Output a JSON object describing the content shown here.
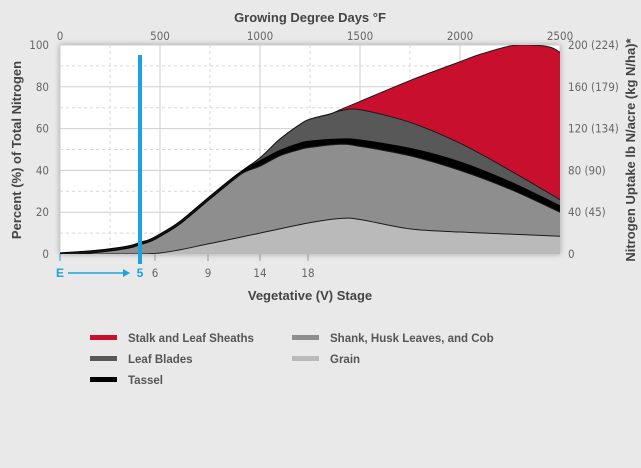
{
  "chart_data": {
    "type": "area",
    "top_axis": {
      "title": "Growing Degree Days °F",
      "range": [
        0,
        2500
      ],
      "ticks": [
        "0",
        "500",
        "1000",
        "1500",
        "2000",
        "2500"
      ]
    },
    "bottom_axis": {
      "title": "Vegetative (V) Stage",
      "ticks": [
        {
          "label": "E",
          "gdd": 0,
          "color": "#1aa3dd"
        },
        {
          "label": "5",
          "gdd": 400,
          "color": "#1aa3dd"
        },
        {
          "label": "6",
          "gdd": 475,
          "color": "#666666"
        },
        {
          "label": "9",
          "gdd": 740,
          "color": "#666666"
        },
        {
          "label": "14",
          "gdd": 1000,
          "color": "#666666"
        },
        {
          "label": "18",
          "gdd": 1240,
          "color": "#666666"
        }
      ]
    },
    "left_axis": {
      "title": "Percent (%) of Total Nitrogen",
      "range": [
        0,
        100
      ],
      "ticks": [
        "0",
        "20",
        "40",
        "60",
        "80",
        "100"
      ]
    },
    "right_axis": {
      "title": "Nitrogen Uptake lb N/acre (kg N/ha)*",
      "ticks": [
        "0",
        "40 (45)",
        "80 (90)",
        "120 (134)",
        "160 (179)",
        "200 (224)"
      ]
    },
    "marker": {
      "gdd": 400,
      "color": "#1aa3dd"
    },
    "grid": true,
    "legend_position": "bottom",
    "series": [
      {
        "name": "Grain",
        "color": "#bababa",
        "x": [
          0,
          250,
          500,
          750,
          1000,
          1250,
          1400,
          1500,
          1750,
          2000,
          2250,
          2500
        ],
        "values": [
          0,
          0,
          0.5,
          5,
          10,
          15,
          17,
          16.5,
          12,
          10.5,
          9.5,
          8.5
        ]
      },
      {
        "name": "Shank, Husk Leaves, and Cob",
        "color": "#8e8e8e",
        "x": [
          0,
          150,
          250,
          350,
          400,
          450,
          500,
          600,
          750,
          900,
          1000,
          1100,
          1200,
          1250,
          1400,
          1500,
          1750,
          2000,
          2250,
          2500
        ],
        "values": [
          0,
          1,
          2,
          3.5,
          5,
          6.5,
          9,
          15,
          27,
          38,
          42,
          47,
          50,
          51,
          52.5,
          51.5,
          47,
          40,
          31,
          20
        ]
      },
      {
        "name": "Tassel",
        "color": "#000000",
        "x": [
          0,
          150,
          250,
          350,
          400,
          450,
          500,
          600,
          750,
          900,
          1000,
          1100,
          1200,
          1250,
          1400,
          1500,
          1750,
          2000,
          2250,
          2500
        ],
        "values": [
          0,
          1,
          2,
          3.5,
          5,
          6.5,
          9,
          15,
          27,
          38.5,
          44,
          49,
          52.5,
          53.5,
          54.5,
          54,
          50,
          43.5,
          34,
          22.5
        ]
      },
      {
        "name": "Leaf Blades",
        "color": "#585858",
        "x": [
          0,
          150,
          250,
          350,
          400,
          450,
          500,
          600,
          750,
          900,
          1000,
          1100,
          1200,
          1250,
          1350,
          1400,
          1500,
          1750,
          2000,
          2250,
          2500
        ],
        "values": [
          0,
          1,
          2,
          3.5,
          5,
          6.5,
          9,
          15,
          27,
          39,
          46,
          55,
          62,
          64.5,
          67,
          68.5,
          69,
          63,
          53,
          40,
          26
        ]
      },
      {
        "name": "Stalk and Leaf Sheaths",
        "color": "#c8102e",
        "x": [
          0,
          150,
          250,
          350,
          400,
          450,
          500,
          600,
          750,
          900,
          1000,
          1100,
          1200,
          1250,
          1350,
          1400,
          1500,
          1750,
          2000,
          2100,
          2250,
          2350,
          2450,
          2500
        ],
        "values": [
          0,
          1,
          2,
          3.5,
          5,
          6.5,
          9,
          15,
          27,
          39,
          46,
          55,
          62,
          64.5,
          67,
          69,
          73,
          83,
          92,
          95.5,
          99.5,
          100,
          99,
          96.5
        ]
      }
    ]
  }
}
